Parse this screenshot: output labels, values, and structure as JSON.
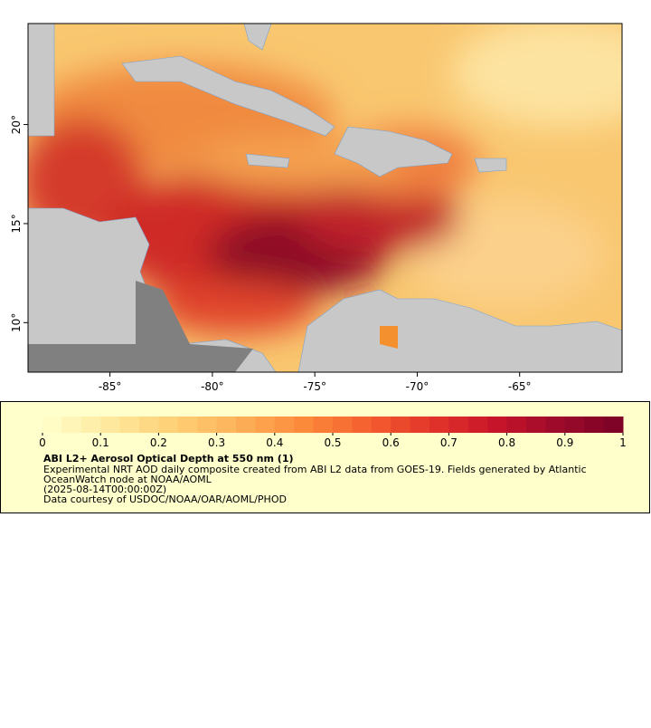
{
  "chart_data": {
    "type": "map",
    "xlim": [
      -89,
      -60
    ],
    "ylim": [
      7.5,
      25.1
    ],
    "xticks": [
      {
        "value": -85,
        "label": "-85°"
      },
      {
        "value": -80,
        "label": "-80°"
      },
      {
        "value": -75,
        "label": "-75°"
      },
      {
        "value": -70,
        "label": "-70°"
      },
      {
        "value": -65,
        "label": "-65°"
      }
    ],
    "yticks": [
      {
        "value": 10,
        "label": "10°"
      },
      {
        "value": 15,
        "label": "15°"
      },
      {
        "value": 20,
        "label": "20°"
      }
    ],
    "colorbar": {
      "range": [
        0,
        1
      ],
      "ticks": [
        0,
        0.1,
        0.2,
        0.3,
        0.4,
        0.5,
        0.6,
        0.7,
        0.8,
        0.9,
        1
      ],
      "colors": [
        "#ffffcc",
        "#fee9a0",
        "#fed176",
        "#fdb25a",
        "#fc8c3c",
        "#f5612f",
        "#e3362a",
        "#c8142a",
        "#9c0a2a",
        "#7a0026"
      ]
    },
    "legend": {
      "title": "ABI L2+ Aerosol Optical Depth at 550 nm (1)",
      "lines": [
        "Experimental NRT AOD daily composite created from ABI L2 data from GOES-19. Fields generated by Atlantic",
        "OceanWatch node at NOAA/AOML",
        "(2025-08-14T00:00:00Z)",
        "Data courtesy of USDOC/NOAA/OAR/AOML/PHOD"
      ]
    }
  }
}
